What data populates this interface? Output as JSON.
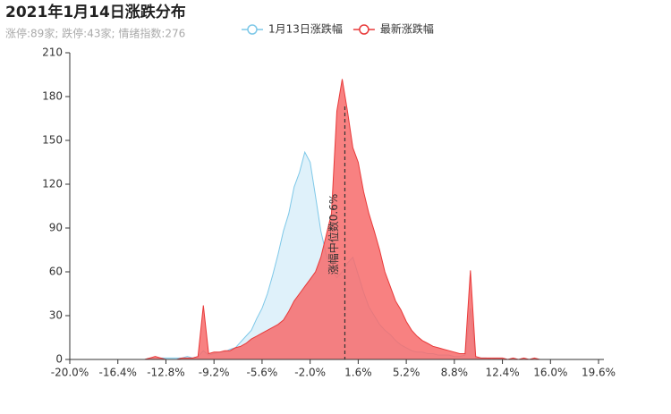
{
  "chart_data": {
    "type": "area",
    "title": "2021年1月14日涨跌分布",
    "subtitle": "涨停:89家; 跌停:43家; 情绪指数:276",
    "x": [
      -20,
      -19.6,
      -19.2,
      -18.8,
      -18.4,
      -18,
      -17.6,
      -17.2,
      -16.8,
      -16.4,
      -16,
      -15.6,
      -15.2,
      -14.8,
      -14.4,
      -14,
      -13.6,
      -13.2,
      -12.8,
      -12.4,
      -12,
      -11.6,
      -11.2,
      -10.8,
      -10.4,
      -10,
      -9.6,
      -9.2,
      -8.8,
      -8.4,
      -8,
      -7.6,
      -7.2,
      -6.8,
      -6.4,
      -6,
      -5.6,
      -5.2,
      -4.8,
      -4.4,
      -4,
      -3.6,
      -3.2,
      -2.8,
      -2.4,
      -2,
      -1.6,
      -1.2,
      -0.8,
      -0.4,
      0,
      0.4,
      0.8,
      1.2,
      1.6,
      2,
      2.4,
      2.8,
      3.2,
      3.6,
      4,
      4.4,
      4.8,
      5.2,
      5.6,
      6,
      6.4,
      6.8,
      7.2,
      7.6,
      8,
      8.4,
      8.8,
      9.2,
      9.6,
      10,
      10.4,
      10.8,
      11.2,
      11.6,
      12,
      12.4,
      12.8,
      13.2,
      13.6,
      14,
      14.4,
      14.8,
      15.2,
      15.6,
      16,
      16.4,
      16.8,
      17.2,
      17.6,
      18,
      18.4,
      18.8,
      19.2,
      19.6,
      20
    ],
    "series": [
      {
        "name": "1月13日涨跌幅",
        "color": "#7ec8e8",
        "fill": "#dff1fa",
        "values": [
          0,
          0,
          0,
          0,
          0,
          0,
          0,
          0,
          0,
          0,
          0,
          0,
          0,
          0,
          0,
          1,
          0,
          1,
          1,
          1,
          1,
          1,
          2,
          1,
          2,
          6,
          3,
          4,
          5,
          5,
          7,
          8,
          12,
          16,
          20,
          28,
          35,
          45,
          58,
          72,
          88,
          100,
          118,
          128,
          142,
          135,
          112,
          88,
          72,
          62,
          56,
          60,
          66,
          70,
          58,
          46,
          36,
          30,
          24,
          20,
          17,
          13,
          10,
          8,
          6,
          5,
          5,
          4,
          4,
          3,
          3,
          3,
          2,
          2,
          3,
          35,
          1,
          1,
          1,
          0,
          1,
          0,
          0,
          0,
          0,
          0,
          0,
          0,
          0,
          0,
          0,
          0,
          0,
          0,
          0,
          0,
          0,
          0,
          0,
          0,
          0
        ]
      },
      {
        "name": "最新涨跌幅",
        "color": "#e83a3a",
        "fill": "#f76b6b",
        "values": [
          0,
          0,
          0,
          0,
          0,
          0,
          0,
          0,
          0,
          0,
          0,
          0,
          0,
          0,
          0,
          1,
          2,
          1,
          0,
          0,
          0,
          1,
          1,
          1,
          2,
          37,
          4,
          5,
          5,
          6,
          6,
          8,
          9,
          11,
          14,
          16,
          18,
          20,
          22,
          24,
          27,
          33,
          40,
          45,
          50,
          55,
          60,
          70,
          85,
          100,
          170,
          192,
          170,
          145,
          135,
          115,
          100,
          88,
          75,
          60,
          50,
          40,
          34,
          26,
          20,
          16,
          13,
          11,
          9,
          8,
          7,
          6,
          5,
          4,
          4,
          61,
          2,
          1,
          1,
          1,
          1,
          1,
          0,
          1,
          0,
          1,
          0,
          1,
          0,
          0,
          0,
          0,
          0,
          0,
          0,
          0,
          0,
          0,
          0,
          0,
          0
        ]
      }
    ],
    "median_line": {
      "value": 0.6,
      "label": "涨幅中位数0.6%"
    },
    "xlim": [
      -20,
      20
    ],
    "xticks": [
      {
        "value": -20,
        "label": "-20.0%"
      },
      {
        "value": -16.4,
        "label": "-16.4%"
      },
      {
        "value": -12.8,
        "label": "-12.8%"
      },
      {
        "value": -9.2,
        "label": "-9.2%"
      },
      {
        "value": -5.6,
        "label": "-5.6%"
      },
      {
        "value": -2,
        "label": "-2.0%"
      },
      {
        "value": 1.6,
        "label": "1.6%"
      },
      {
        "value": 5.2,
        "label": "5.2%"
      },
      {
        "value": 8.8,
        "label": "8.8%"
      },
      {
        "value": 12.4,
        "label": "12.4%"
      },
      {
        "value": 16,
        "label": "16.0%"
      },
      {
        "value": 19.6,
        "label": "19.6%"
      }
    ],
    "ylim": [
      0,
      210
    ],
    "yticks": [
      0,
      30,
      60,
      90,
      120,
      150,
      180,
      210
    ],
    "legend": "top"
  }
}
